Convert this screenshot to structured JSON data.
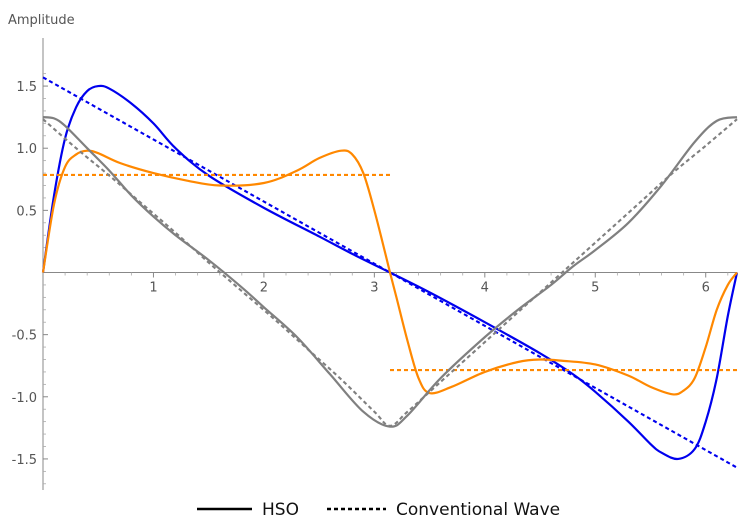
{
  "chart_data": {
    "type": "line",
    "title": "",
    "xlabel": "",
    "ylabel": "Amplitude",
    "xlim": [
      0,
      6.2832
    ],
    "ylim": [
      -1.75,
      1.75
    ],
    "x_ticks": [
      1,
      2,
      3,
      4,
      5,
      6
    ],
    "x_tick_labels": [
      "1",
      "2",
      "3",
      "4",
      "5",
      "6"
    ],
    "y_ticks": [
      1.5,
      1.0,
      0.5,
      -0.5,
      -1.0,
      -1.5
    ],
    "y_tick_labels": [
      "1.5",
      "1.0",
      "0.5",
      "-0.5",
      "-1.0",
      "-1.5"
    ],
    "grid": false,
    "legend_position": "bottom-center",
    "legend": [
      {
        "label": "HSO",
        "style": "solid"
      },
      {
        "label": "Conventional Wave",
        "style": "dashed"
      }
    ],
    "series": [
      {
        "style": "solid",
        "color": "#0000ee",
        "x": [
          0,
          0.1,
          0.2,
          0.3,
          0.4,
          0.5,
          0.6,
          0.8,
          1.0,
          1.2,
          1.5,
          2.0,
          2.5,
          2.8,
          3.1416,
          3.5,
          4.0,
          4.5,
          4.8,
          5.0,
          5.3,
          5.5,
          5.6,
          5.75,
          5.9,
          6.0,
          6.1,
          6.2,
          6.2832
        ],
        "y": [
          0,
          0.62,
          1.08,
          1.33,
          1.46,
          1.5,
          1.48,
          1.36,
          1.2,
          1.0,
          0.78,
          0.52,
          0.29,
          0.15,
          0,
          -0.16,
          -0.4,
          -0.65,
          -0.82,
          -0.96,
          -1.2,
          -1.38,
          -1.45,
          -1.5,
          -1.42,
          -1.2,
          -0.85,
          -0.35,
          0
        ]
      },
      {
        "style": "dashed",
        "color": "#0000ee",
        "x": [
          0,
          6.2832
        ],
        "y": [
          1.57,
          -1.57
        ]
      },
      {
        "style": "solid",
        "color": "#ff8800",
        "x": [
          0,
          0.1,
          0.2,
          0.3,
          0.4,
          0.5,
          0.7,
          1.0,
          1.3,
          1.6,
          2.0,
          2.3,
          2.5,
          2.7,
          2.8,
          2.9,
          3.0,
          3.1,
          3.1416,
          3.2,
          3.3,
          3.4,
          3.5,
          3.7,
          4.0,
          4.3,
          4.5,
          4.7,
          5.0,
          5.3,
          5.5,
          5.7,
          5.8,
          5.9,
          6.0,
          6.1,
          6.2,
          6.2832
        ],
        "y": [
          0,
          0.55,
          0.85,
          0.95,
          0.98,
          0.96,
          0.88,
          0.8,
          0.74,
          0.7,
          0.72,
          0.82,
          0.92,
          0.98,
          0.95,
          0.8,
          0.5,
          0.15,
          0,
          -0.2,
          -0.55,
          -0.85,
          -0.97,
          -0.92,
          -0.8,
          -0.72,
          -0.7,
          -0.71,
          -0.74,
          -0.83,
          -0.92,
          -0.98,
          -0.95,
          -0.85,
          -0.6,
          -0.3,
          -0.1,
          0
        ]
      },
      {
        "style": "dashed",
        "color": "#ff8800",
        "x": [
          0,
          3.1416
        ],
        "y": [
          0.785,
          0.785
        ]
      },
      {
        "style": "dashed",
        "color": "#ff8800",
        "x": [
          3.1416,
          6.2832
        ],
        "y": [
          -0.785,
          -0.785
        ]
      },
      {
        "style": "solid",
        "color": "#808080",
        "x": [
          0,
          0.1,
          0.2,
          0.4,
          0.6,
          0.8,
          1.0,
          1.2,
          1.5,
          1.8,
          2.0,
          2.3,
          2.6,
          2.9,
          3.1416,
          3.3,
          3.6,
          4.0,
          4.3,
          4.6,
          4.8,
          5.0,
          5.3,
          5.6,
          5.9,
          6.1,
          6.2832
        ],
        "y": [
          1.25,
          1.24,
          1.18,
          1.0,
          0.82,
          0.62,
          0.45,
          0.3,
          0.1,
          -0.12,
          -0.28,
          -0.52,
          -0.82,
          -1.12,
          -1.24,
          -1.15,
          -0.85,
          -0.52,
          -0.3,
          -0.1,
          0.05,
          0.18,
          0.4,
          0.7,
          1.05,
          1.22,
          1.25
        ]
      },
      {
        "style": "dashed",
        "color": "#808080",
        "x": [
          0,
          0.3,
          0.6,
          0.9,
          1.2,
          1.5,
          1.8,
          2.1,
          2.4,
          2.7,
          3.0,
          3.1416,
          3.3,
          3.6,
          3.9,
          4.2,
          4.5,
          4.8,
          5.1,
          5.4,
          5.7,
          6.0,
          6.2832
        ],
        "y": [
          1.2337,
          1.0,
          0.78,
          0.55,
          0.32,
          0.08,
          -0.15,
          -0.38,
          -0.62,
          -0.86,
          -1.12,
          -1.2337,
          -1.12,
          -0.88,
          -0.64,
          -0.4,
          -0.16,
          0.08,
          0.32,
          0.56,
          0.8,
          1.02,
          1.2337
        ]
      }
    ]
  }
}
